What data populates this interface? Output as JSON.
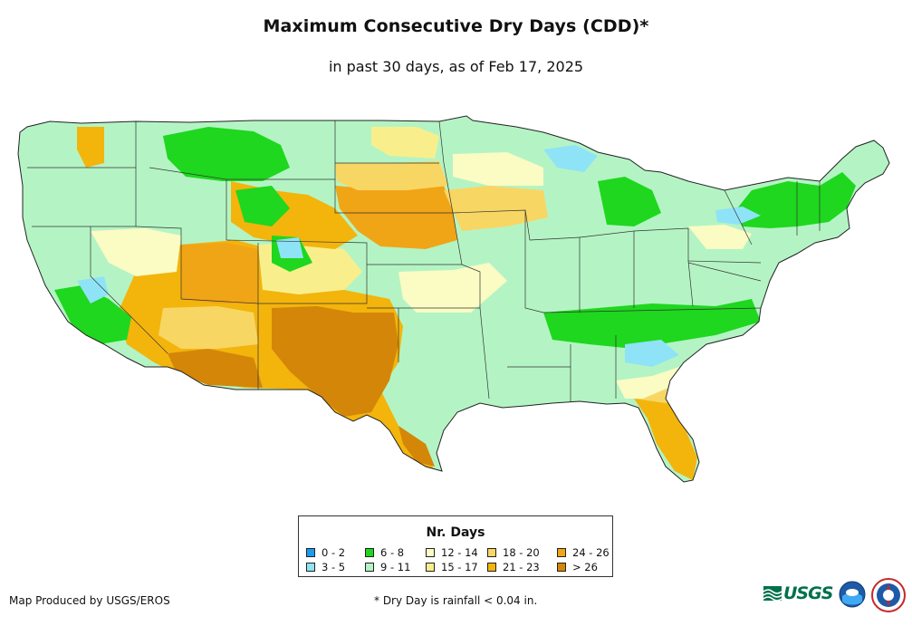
{
  "header": {
    "title": "Maximum Consecutive Dry Days (CDD)*",
    "subtitle": "in past 30 days, as of Feb 17, 2025"
  },
  "legend": {
    "title": "Nr. Days",
    "items": [
      {
        "label": "0 - 2",
        "color": "#1a9bf0"
      },
      {
        "label": "3 - 5",
        "color": "#8fe3f7"
      },
      {
        "label": "6 - 8",
        "color": "#1ed71e"
      },
      {
        "label": "9 - 11",
        "color": "#b4f4c4"
      },
      {
        "label": "12 - 14",
        "color": "#fbfbc4"
      },
      {
        "label": "15 - 17",
        "color": "#f8ef8c"
      },
      {
        "label": "18 - 20",
        "color": "#f8d664"
      },
      {
        "label": "21 - 23",
        "color": "#f3b40c"
      },
      {
        "label": "24 - 26",
        "color": "#f0a516"
      },
      {
        "label": "> 26",
        "color": "#d48608"
      }
    ]
  },
  "footer": {
    "credit": "Map Produced by USGS/EROS",
    "footnote": "* Dry Day is rainfall < 0.04 in.",
    "usgs_logo": "USGS",
    "usgs_icon": "usgs-wave-icon",
    "noaa_icon": "noaa-logo-icon",
    "nws_icon": "nws-logo-icon"
  }
}
